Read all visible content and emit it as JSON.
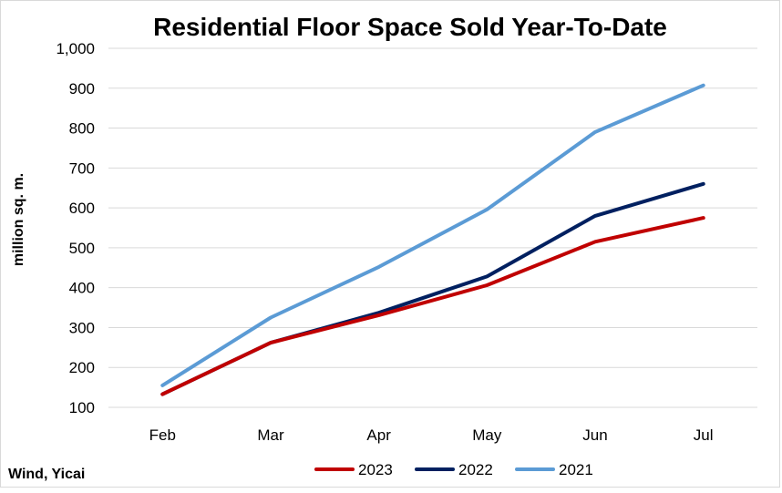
{
  "chart_data": {
    "type": "line",
    "title": "Residential Floor Space Sold Year-To-Date",
    "xlabel": "",
    "ylabel": "million sq. m.",
    "categories": [
      "Feb",
      "Mar",
      "Apr",
      "May",
      "Jun",
      "Jul"
    ],
    "y_ticks": [
      "100",
      "200",
      "300",
      "400",
      "500",
      "600",
      "700",
      "800",
      "900",
      "1,000"
    ],
    "ylim": [
      100,
      1000
    ],
    "grid": true,
    "legend_position": "bottom",
    "source": "Wind, Yicai",
    "series": [
      {
        "name": "2023",
        "color": "#c00000",
        "values": [
          133,
          262,
          331,
          406,
          515,
          575
        ]
      },
      {
        "name": "2022",
        "color": "#002060",
        "values": [
          133,
          262,
          337,
          428,
          580,
          660
        ]
      },
      {
        "name": "2021",
        "color": "#5b9bd5",
        "values": [
          155,
          325,
          452,
          596,
          790,
          907
        ]
      }
    ]
  }
}
